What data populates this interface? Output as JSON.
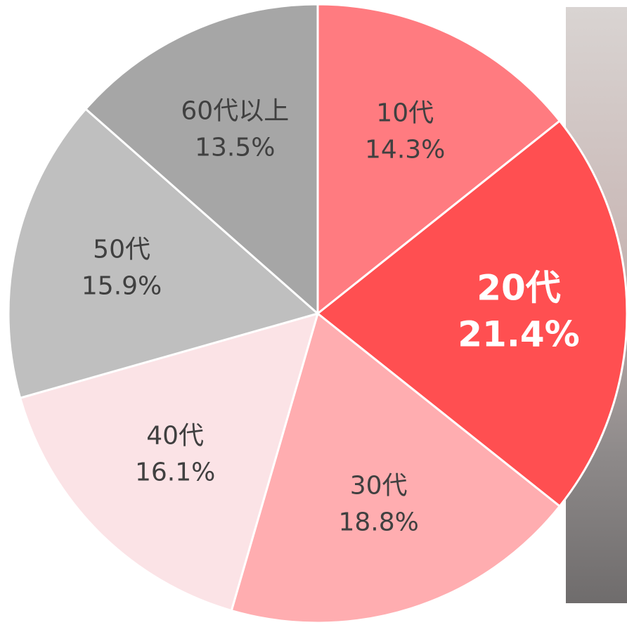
{
  "chart_data": {
    "type": "pie",
    "categories": [
      "10代",
      "20代",
      "30代",
      "40代",
      "50代",
      "60代以上"
    ],
    "values": [
      14.3,
      21.4,
      18.8,
      16.1,
      15.9,
      13.5
    ],
    "value_labels": [
      "14.3%",
      "21.4%",
      "18.8%",
      "16.1%",
      "15.9%",
      "13.5%"
    ],
    "colors": [
      "#ff7b80",
      "#ff4f51",
      "#ffadb0",
      "#fbe3e6",
      "#bfbfbf",
      "#a6a6a6"
    ]
  }
}
